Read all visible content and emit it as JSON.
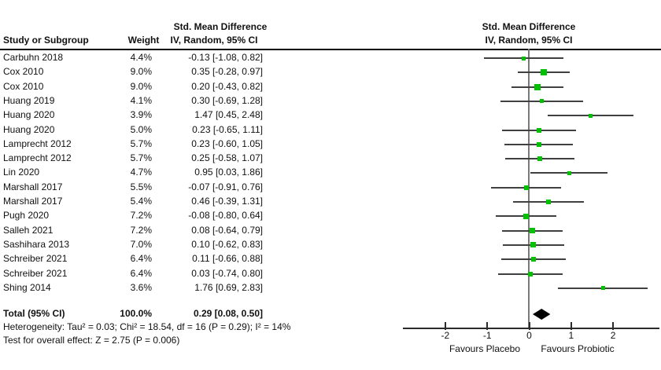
{
  "chart_data": {
    "type": "scatter",
    "subtype": "forest-plot-meta-analysis",
    "columns": {
      "study_header": "Study or Subgroup",
      "weight_header": "Weight",
      "effect_header_line1": "Std. Mean Difference",
      "effect_header_line2": "IV, Random, 95% CI",
      "plot_header_line1": "Std. Mean Difference",
      "plot_header_line2": "IV, Random, 95% CI"
    },
    "studies": [
      {
        "study": "Carbuhn 2018",
        "weight": "4.4%",
        "weight_value": 4.4,
        "ci_text": "-0.13 [-1.08, 0.82]",
        "estimate": -0.13,
        "ci_low": -1.08,
        "ci_high": 0.82
      },
      {
        "study": "Cox 2010",
        "weight": "9.0%",
        "weight_value": 9.0,
        "ci_text": "0.35 [-0.28, 0.97]",
        "estimate": 0.35,
        "ci_low": -0.28,
        "ci_high": 0.97
      },
      {
        "study": "Cox 2010",
        "weight": "9.0%",
        "weight_value": 9.0,
        "ci_text": "0.20 [-0.43, 0.82]",
        "estimate": 0.2,
        "ci_low": -0.43,
        "ci_high": 0.82
      },
      {
        "study": "Huang 2019",
        "weight": "4.1%",
        "weight_value": 4.1,
        "ci_text": "0.30 [-0.69, 1.28]",
        "estimate": 0.3,
        "ci_low": -0.69,
        "ci_high": 1.28
      },
      {
        "study": "Huang 2020",
        "weight": "3.9%",
        "weight_value": 3.9,
        "ci_text": "1.47 [0.45, 2.48]",
        "estimate": 1.47,
        "ci_low": 0.45,
        "ci_high": 2.48
      },
      {
        "study": "Huang 2020",
        "weight": "5.0%",
        "weight_value": 5.0,
        "ci_text": "0.23 [-0.65, 1.11]",
        "estimate": 0.23,
        "ci_low": -0.65,
        "ci_high": 1.11
      },
      {
        "study": "Lamprecht 2012",
        "weight": "5.7%",
        "weight_value": 5.7,
        "ci_text": "0.23 [-0.60, 1.05]",
        "estimate": 0.23,
        "ci_low": -0.6,
        "ci_high": 1.05
      },
      {
        "study": "Lamprecht 2012",
        "weight": "5.7%",
        "weight_value": 5.7,
        "ci_text": "0.25 [-0.58, 1.07]",
        "estimate": 0.25,
        "ci_low": -0.58,
        "ci_high": 1.07
      },
      {
        "study": "Lin 2020",
        "weight": "4.7%",
        "weight_value": 4.7,
        "ci_text": "0.95 [0.03, 1.86]",
        "estimate": 0.95,
        "ci_low": 0.03,
        "ci_high": 1.86
      },
      {
        "study": "Marshall 2017",
        "weight": "5.5%",
        "weight_value": 5.5,
        "ci_text": "-0.07 [-0.91, 0.76]",
        "estimate": -0.07,
        "ci_low": -0.91,
        "ci_high": 0.76
      },
      {
        "study": "Marshall 2017",
        "weight": "5.4%",
        "weight_value": 5.4,
        "ci_text": "0.46 [-0.39, 1.31]",
        "estimate": 0.46,
        "ci_low": -0.39,
        "ci_high": 1.31
      },
      {
        "study": "Pugh 2020",
        "weight": "7.2%",
        "weight_value": 7.2,
        "ci_text": "-0.08 [-0.80, 0.64]",
        "estimate": -0.08,
        "ci_low": -0.8,
        "ci_high": 0.64
      },
      {
        "study": "Salleh 2021",
        "weight": "7.2%",
        "weight_value": 7.2,
        "ci_text": "0.08 [-0.64, 0.79]",
        "estimate": 0.08,
        "ci_low": -0.64,
        "ci_high": 0.79
      },
      {
        "study": "Sashihara 2013",
        "weight": "7.0%",
        "weight_value": 7.0,
        "ci_text": "0.10 [-0.62, 0.83]",
        "estimate": 0.1,
        "ci_low": -0.62,
        "ci_high": 0.83
      },
      {
        "study": "Schreiber 2021",
        "weight": "6.4%",
        "weight_value": 6.4,
        "ci_text": "0.11 [-0.66, 0.88]",
        "estimate": 0.11,
        "ci_low": -0.66,
        "ci_high": 0.88
      },
      {
        "study": "Schreiber 2021",
        "weight": "6.4%",
        "weight_value": 6.4,
        "ci_text": "0.03 [-0.74, 0.80]",
        "estimate": 0.03,
        "ci_low": -0.74,
        "ci_high": 0.8
      },
      {
        "study": "Shing 2014",
        "weight": "3.6%",
        "weight_value": 3.6,
        "ci_text": "1.76 [0.69, 2.83]",
        "estimate": 1.76,
        "ci_low": 0.69,
        "ci_high": 2.83
      }
    ],
    "total": {
      "label": "Total (95% CI)",
      "weight": "100.0%",
      "ci_text": "0.29 [0.08, 0.50]",
      "estimate": 0.29,
      "ci_low": 0.08,
      "ci_high": 0.5
    },
    "footnotes": {
      "heterogeneity": "Heterogeneity: Tau² = 0.03; Chi² = 18.54, df = 16 (P = 0.29); I² = 14%",
      "overall_effect": "Test for overall effect: Z = 2.75 (P = 0.006)"
    },
    "axis": {
      "ticks": [
        -2,
        -1,
        0,
        1,
        2
      ],
      "left_label": "Favours Placebo",
      "right_label": "Favours Probiotic"
    },
    "colors": {
      "marker": "#00c000",
      "ci_line": "#404040",
      "diamond": "#000000",
      "axis_line": "#2b2b2b",
      "zero_line": "#7a7a7a"
    }
  }
}
